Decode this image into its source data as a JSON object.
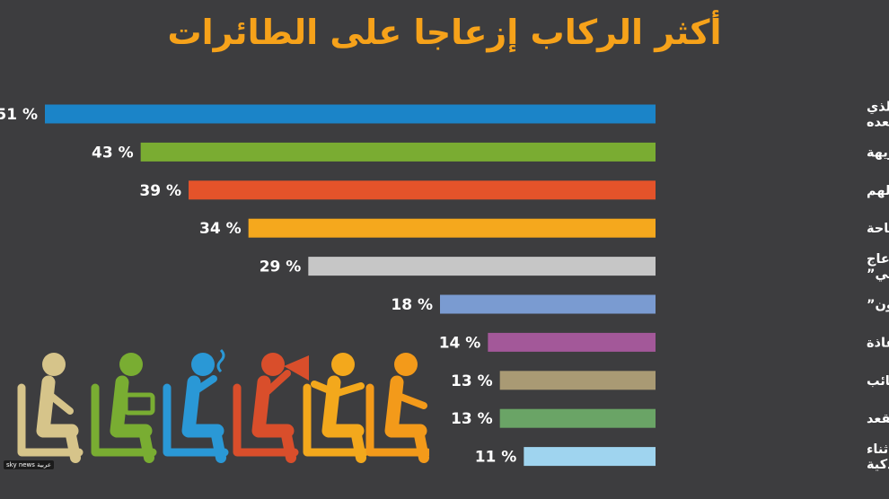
{
  "chart_data": {
    "type": "bar",
    "orientation": "horizontal",
    "title": "أكثر الركاب إزعاجا على الطائرات",
    "value_suffix": " %",
    "max_value": 51,
    "categories": [
      [
        "المسافر الذي يركل المقعد أو الذي",
        "يجذب مقعدك لكي ينهض من مقعده"
      ],
      [
        "المسافر ذو الرائحة الكريهة"
      ],
      [
        "الآباء غير المبالين بأطفالهم"
      ],
      [
        "منتهكو خصوصية المساحة"
      ],
      [
        "المتحدثون بصوت عال “الإزعاج",
        "الصوتي”"
      ],
      [
        "متجاوزو الصفوف “القافزون”"
      ],
      [
        "تناول الأطعمة ذات الرائحة النفاذة"
      ],
      [
        "الإساءة باستخدام الحقائب"
      ],
      [
        "الإساءة استخدام مسند ذراع المقعد"
      ],
      [
        "عدم الالتزام بخاصية الطيران أثناء",
        "استخدام الهواتف الذكية"
      ]
    ],
    "values": [
      51,
      43,
      39,
      34,
      29,
      18,
      14,
      13,
      13,
      11
    ],
    "colors": [
      "#1b84c8",
      "#7aac32",
      "#e4532a",
      "#f5a81d",
      "#c6c6c6",
      "#7a9bd1",
      "#a35899",
      "#a99a74",
      "#6aa466",
      "#9fd4ef"
    ]
  },
  "figure_colors": [
    "#d6c48a",
    "#79ad32",
    "#2a98d6",
    "#d94e2b",
    "#f3a81c",
    "#f39a1a"
  ],
  "figure_names": [
    "person-seated-icon",
    "person-laptop-icon",
    "person-shouting-icon",
    "person-megaphone-icon",
    "person-arms-out-icon",
    "person-kicking-icon"
  ],
  "logo_text": "sky news عربية"
}
